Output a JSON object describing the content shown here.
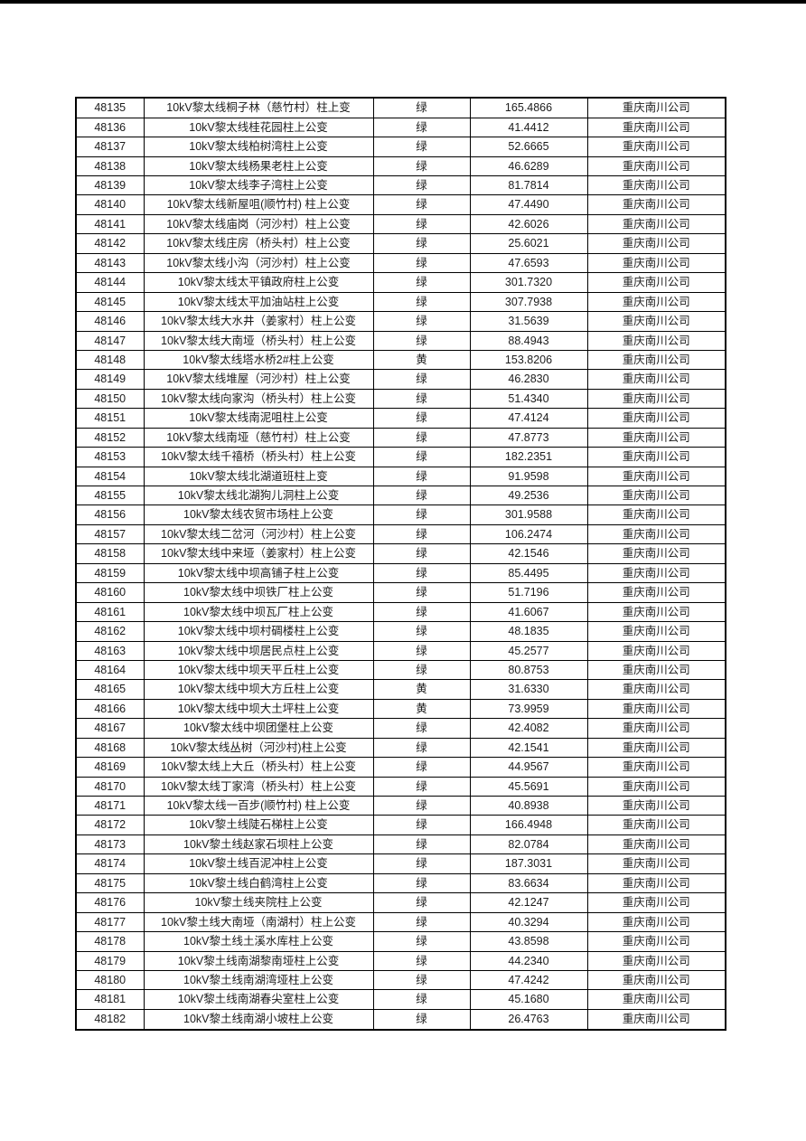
{
  "page": {
    "background": "#ffffff",
    "top_edge_color": "#000000",
    "border_color": "#000000",
    "text_color": "#1c1c1c"
  },
  "table": {
    "columns": [
      "serial_number",
      "device_name",
      "status_color_label",
      "value",
      "company"
    ],
    "status_labels": {
      "green": "绿",
      "yellow": "黄"
    },
    "rows": [
      [
        "48135",
        "10kV黎太线桐子林（慈竹村）柱上变",
        "绿",
        "165.4866",
        "重庆南川公司"
      ],
      [
        "48136",
        "10kV黎太线桂花园柱上公变",
        "绿",
        "41.4412",
        "重庆南川公司"
      ],
      [
        "48137",
        "10kV黎太线柏树湾柱上公变",
        "绿",
        "52.6665",
        "重庆南川公司"
      ],
      [
        "48138",
        "10kV黎太线杨果老柱上公变",
        "绿",
        "46.6289",
        "重庆南川公司"
      ],
      [
        "48139",
        "10kV黎太线李子湾柱上公变",
        "绿",
        "81.7814",
        "重庆南川公司"
      ],
      [
        "48140",
        "10kV黎太线新屋咀(顺竹村) 柱上公变",
        "绿",
        "47.4490",
        "重庆南川公司"
      ],
      [
        "48141",
        "10kV黎太线庙岗（河沙村）柱上公变",
        "绿",
        "42.6026",
        "重庆南川公司"
      ],
      [
        "48142",
        "10kV黎太线庄房（桥头村）柱上公变",
        "绿",
        "25.6021",
        "重庆南川公司"
      ],
      [
        "48143",
        "10kV黎太线小沟（河沙村）柱上公变",
        "绿",
        "47.6593",
        "重庆南川公司"
      ],
      [
        "48144",
        "10kV黎太线太平镇政府柱上公变",
        "绿",
        "301.7320",
        "重庆南川公司"
      ],
      [
        "48145",
        "10kV黎太线太平加油站柱上公变",
        "绿",
        "307.7938",
        "重庆南川公司"
      ],
      [
        "48146",
        "10kV黎太线大水井（姜家村）柱上公变",
        "绿",
        "31.5639",
        "重庆南川公司"
      ],
      [
        "48147",
        "10kV黎太线大南垭（桥头村）柱上公变",
        "绿",
        "88.4943",
        "重庆南川公司"
      ],
      [
        "48148",
        "10kV黎太线塔水桥2#柱上公变",
        "黄",
        "153.8206",
        "重庆南川公司"
      ],
      [
        "48149",
        "10kV黎太线堆屋（河沙村）柱上公变",
        "绿",
        "46.2830",
        "重庆南川公司"
      ],
      [
        "48150",
        "10kV黎太线向家沟（桥头村）柱上公变",
        "绿",
        "51.4340",
        "重庆南川公司"
      ],
      [
        "48151",
        "10kV黎太线南泥咀柱上公变",
        "绿",
        "47.4124",
        "重庆南川公司"
      ],
      [
        "48152",
        "10kV黎太线南垭（慈竹村）柱上公变",
        "绿",
        "47.8773",
        "重庆南川公司"
      ],
      [
        "48153",
        "10kV黎太线千禧桥（桥头村）柱上公变",
        "绿",
        "182.2351",
        "重庆南川公司"
      ],
      [
        "48154",
        "10kV黎太线北湖道班柱上变",
        "绿",
        "91.9598",
        "重庆南川公司"
      ],
      [
        "48155",
        "10kV黎太线北湖狗儿洞柱上公变",
        "绿",
        "49.2536",
        "重庆南川公司"
      ],
      [
        "48156",
        "10kV黎太线农贸市场柱上公变",
        "绿",
        "301.9588",
        "重庆南川公司"
      ],
      [
        "48157",
        "10kV黎太线二岔河（河沙村）柱上公变",
        "绿",
        "106.2474",
        "重庆南川公司"
      ],
      [
        "48158",
        "10kV黎太线中来垭（姜家村）柱上公变",
        "绿",
        "42.1546",
        "重庆南川公司"
      ],
      [
        "48159",
        "10kV黎太线中坝高铺子柱上公变",
        "绿",
        "85.4495",
        "重庆南川公司"
      ],
      [
        "48160",
        "10kV黎太线中坝铁厂柱上公变",
        "绿",
        "51.7196",
        "重庆南川公司"
      ],
      [
        "48161",
        "10kV黎太线中坝瓦厂柱上公变",
        "绿",
        "41.6067",
        "重庆南川公司"
      ],
      [
        "48162",
        "10kV黎太线中坝村碉楼柱上公变",
        "绿",
        "48.1835",
        "重庆南川公司"
      ],
      [
        "48163",
        "10kV黎太线中坝居民点柱上公变",
        "绿",
        "45.2577",
        "重庆南川公司"
      ],
      [
        "48164",
        "10kV黎太线中坝天平丘柱上公变",
        "绿",
        "80.8753",
        "重庆南川公司"
      ],
      [
        "48165",
        "10kV黎太线中坝大方丘柱上公变",
        "黄",
        "31.6330",
        "重庆南川公司"
      ],
      [
        "48166",
        "10kV黎太线中坝大土坪柱上公变",
        "黄",
        "73.9959",
        "重庆南川公司"
      ],
      [
        "48167",
        "10kV黎太线中坝团堡柱上公变",
        "绿",
        "42.4082",
        "重庆南川公司"
      ],
      [
        "48168",
        "10kV黎太线丛树（河沙村)柱上公变",
        "绿",
        "42.1541",
        "重庆南川公司"
      ],
      [
        "48169",
        "10kV黎太线上大丘（桥头村）柱上公变",
        "绿",
        "44.9567",
        "重庆南川公司"
      ],
      [
        "48170",
        "10kV黎太线丁家湾（桥头村）柱上公变",
        "绿",
        "45.5691",
        "重庆南川公司"
      ],
      [
        "48171",
        "10kV黎太线一百步(顺竹村) 柱上公变",
        "绿",
        "40.8938",
        "重庆南川公司"
      ],
      [
        "48172",
        "10kV黎土线陡石梯柱上公变",
        "绿",
        "166.4948",
        "重庆南川公司"
      ],
      [
        "48173",
        "10kV黎土线赵家石坝柱上公变",
        "绿",
        "82.0784",
        "重庆南川公司"
      ],
      [
        "48174",
        "10kV黎土线百泥冲柱上公变",
        "绿",
        "187.3031",
        "重庆南川公司"
      ],
      [
        "48175",
        "10kV黎土线白鹤湾柱上公变",
        "绿",
        "83.6634",
        "重庆南川公司"
      ],
      [
        "48176",
        "10kV黎土线夹院柱上公变",
        "绿",
        "42.1247",
        "重庆南川公司"
      ],
      [
        "48177",
        "10kV黎土线大南垭（南湖村）柱上公变",
        "绿",
        "40.3294",
        "重庆南川公司"
      ],
      [
        "48178",
        "10kV黎土线土溪水库柱上公变",
        "绿",
        "43.8598",
        "重庆南川公司"
      ],
      [
        "48179",
        "10kV黎土线南湖黎南垭柱上公变",
        "绿",
        "44.2340",
        "重庆南川公司"
      ],
      [
        "48180",
        "10kV黎土线南湖湾垭柱上公变",
        "绿",
        "47.4242",
        "重庆南川公司"
      ],
      [
        "48181",
        "10kV黎土线南湖春尖室柱上公变",
        "绿",
        "45.1680",
        "重庆南川公司"
      ],
      [
        "48182",
        "10kV黎土线南湖小坡柱上公变",
        "绿",
        "26.4763",
        "重庆南川公司"
      ]
    ]
  }
}
